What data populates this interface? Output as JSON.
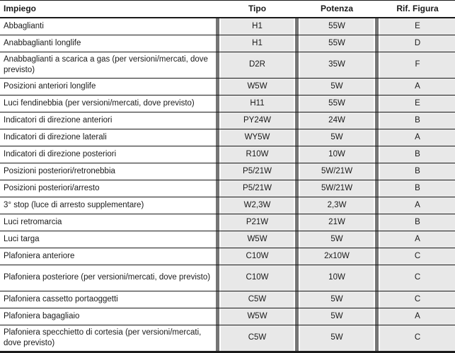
{
  "table": {
    "columns": [
      "Impiego",
      "Tipo",
      "Potenza",
      "Rif. Figura"
    ],
    "rows": [
      {
        "impiego": "Abbaglianti",
        "tipo": "H1",
        "potenza": "55W",
        "rif_figura": "E",
        "lines": 1
      },
      {
        "impiego": "Anabbaglianti longlife",
        "tipo": "H1",
        "potenza": "55W",
        "rif_figura": "D",
        "lines": 1
      },
      {
        "impiego": "Anabbaglianti a scarica a gas (per versioni/mercati, dove previsto)",
        "tipo": "D2R",
        "potenza": "35W",
        "rif_figura": "F",
        "lines": 2
      },
      {
        "impiego": "Posizioni anteriori longlife",
        "tipo": "W5W",
        "potenza": "5W",
        "rif_figura": "A",
        "lines": 1
      },
      {
        "impiego": "Luci fendinebbia (per versioni/mercati, dove previsto)",
        "tipo": "H11",
        "potenza": "55W",
        "rif_figura": "E",
        "lines": 1
      },
      {
        "impiego": "Indicatori di direzione anteriori",
        "tipo": "PY24W",
        "potenza": "24W",
        "rif_figura": "B",
        "lines": 1
      },
      {
        "impiego": "Indicatori di direzione laterali",
        "tipo": "WY5W",
        "potenza": "5W",
        "rif_figura": "A",
        "lines": 1
      },
      {
        "impiego": "Indicatori di direzione posteriori",
        "tipo": "R10W",
        "potenza": "10W",
        "rif_figura": "B",
        "lines": 1
      },
      {
        "impiego": "Posizioni posteriori/retronebbia",
        "tipo": "P5/21W",
        "potenza": "5W/21W",
        "rif_figura": "B",
        "lines": 1
      },
      {
        "impiego": "Posizioni posteriori/arresto",
        "tipo": "P5/21W",
        "potenza": "5W/21W",
        "rif_figura": "B",
        "lines": 1
      },
      {
        "impiego": "3° stop (luce di arresto supplementare)",
        "tipo": "W2,3W",
        "potenza": "2,3W",
        "rif_figura": "A",
        "lines": 1
      },
      {
        "impiego": "Luci retromarcia",
        "tipo": "P21W",
        "potenza": "21W",
        "rif_figura": "B",
        "lines": 1
      },
      {
        "impiego": "Luci targa",
        "tipo": "W5W",
        "potenza": "5W",
        "rif_figura": "A",
        "lines": 1
      },
      {
        "impiego": "Plafoniera anteriore",
        "tipo": "C10W",
        "potenza": "2x10W",
        "rif_figura": "C",
        "lines": 1
      },
      {
        "impiego": "Plafoniera posteriore (per versioni/mercati, dove previsto)",
        "tipo": "C10W",
        "potenza": "10W",
        "rif_figura": "C",
        "lines": 2
      },
      {
        "impiego": "Plafoniera cassetto portaoggetti",
        "tipo": "C5W",
        "potenza": "5W",
        "rif_figura": "C",
        "lines": 1
      },
      {
        "impiego": "Plafoniera bagagliaio",
        "tipo": "W5W",
        "potenza": "5W",
        "rif_figura": "A",
        "lines": 1
      },
      {
        "impiego": "Plafoniera specchietto di cortesia (per versioni/mercati, dove previsto)",
        "tipo": "C5W",
        "potenza": "5W",
        "rif_figura": "C",
        "lines": 2
      }
    ]
  },
  "colors": {
    "cell_background": "#e8e8e8",
    "column_separator": "#757575",
    "grid_line": "#1a1a1a",
    "text": "#1a1a1a"
  }
}
